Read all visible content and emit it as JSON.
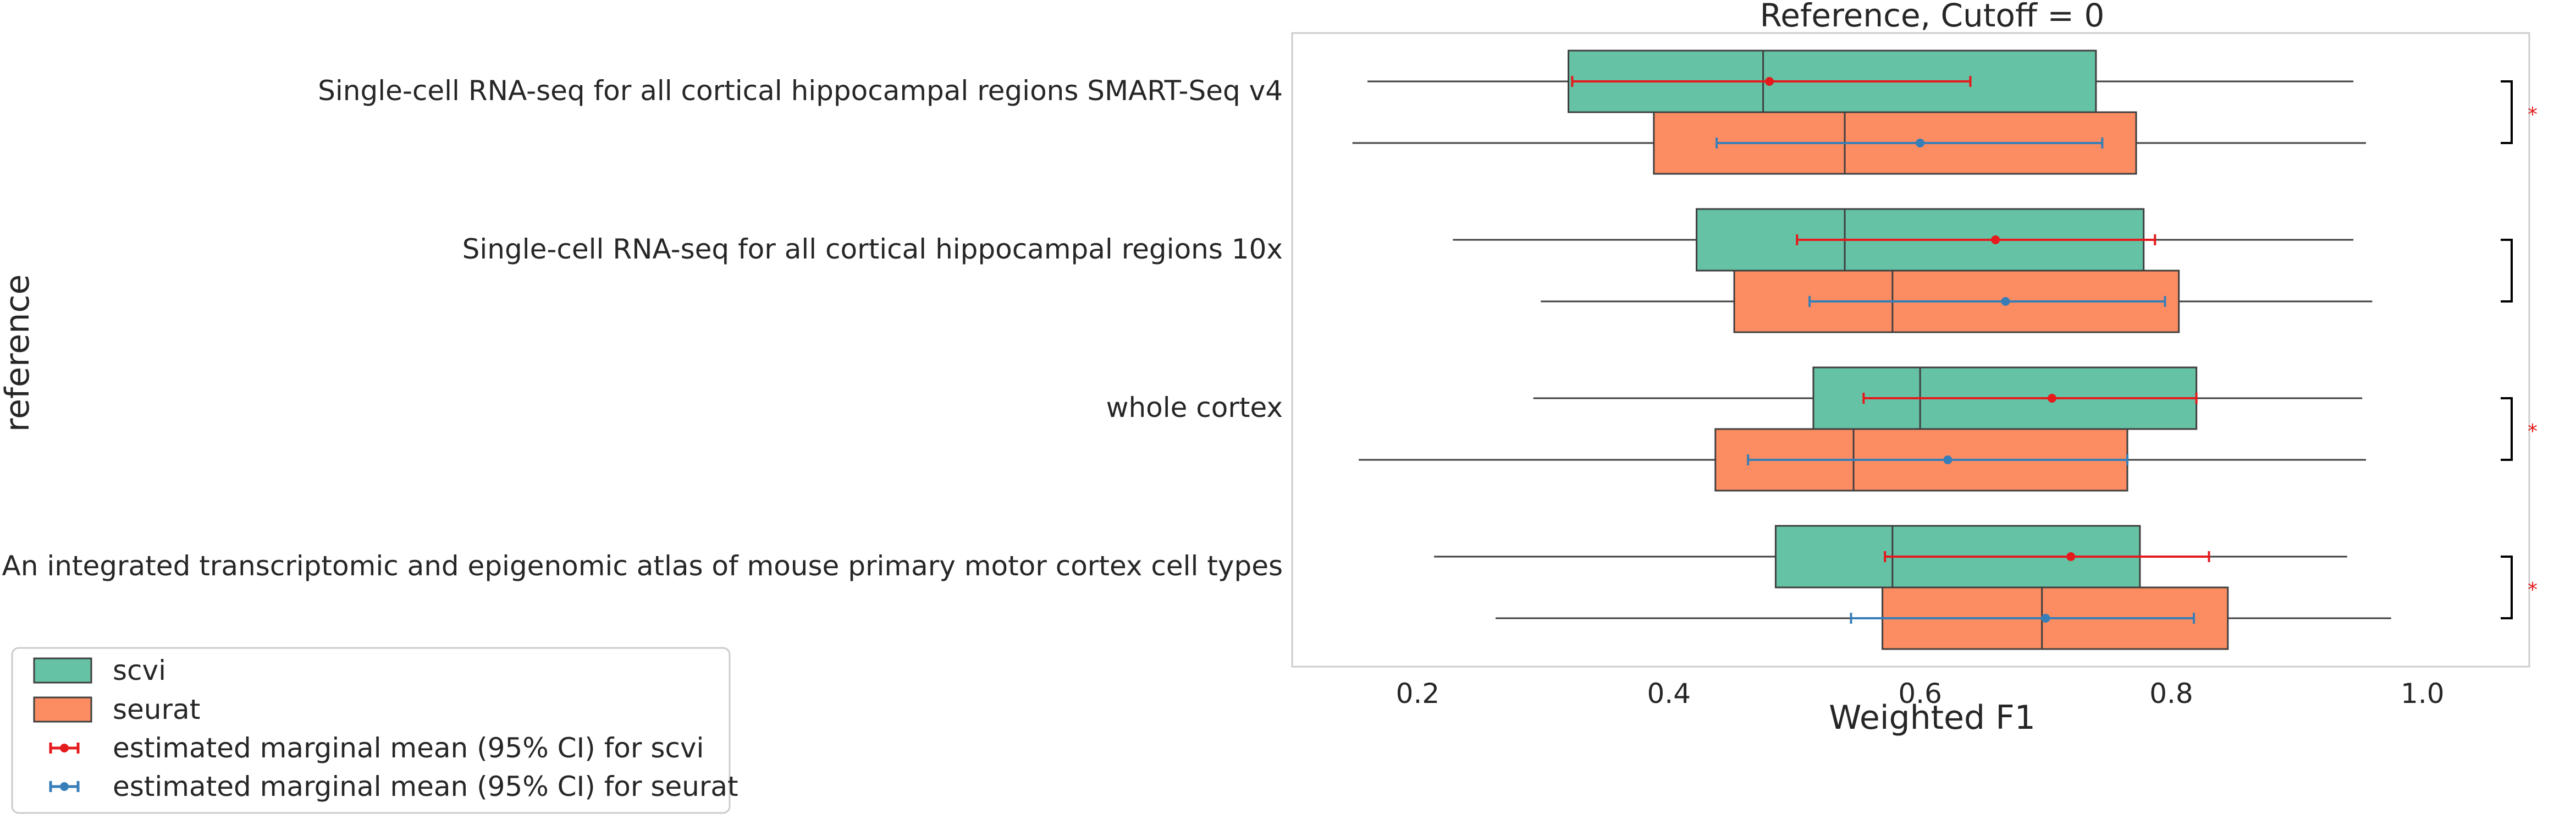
{
  "chart_data": {
    "type": "box",
    "title": "Reference, Cutoff = 0",
    "xlabel": "Weighted F1",
    "ylabel": "reference",
    "xlim": [
      0.1,
      1.085
    ],
    "xticks": [
      "0.2",
      "0.4",
      "0.6",
      "0.8",
      "1.0"
    ],
    "categories": [
      "Single-cell RNA-seq for all cortical  hippocampal regions SMART-Seq v4",
      "Single-cell RNA-seq for all cortical  hippocampal regions 10x",
      "whole cortex",
      "An integrated transcriptomic and epigenomic atlas of mouse primary motor cortex cell types"
    ],
    "series": [
      {
        "name": "scvi",
        "color": "#66c2a5",
        "boxes": [
          {
            "min": 0.16,
            "q1": 0.32,
            "median": 0.475,
            "q3": 0.74,
            "max": 0.945
          },
          {
            "min": 0.228,
            "q1": 0.422,
            "median": 0.54,
            "q3": 0.778,
            "max": 0.945
          },
          {
            "min": 0.292,
            "q1": 0.515,
            "median": 0.6,
            "q3": 0.82,
            "max": 0.952
          },
          {
            "min": 0.213,
            "q1": 0.485,
            "median": 0.578,
            "q3": 0.775,
            "max": 0.94
          }
        ],
        "marginal_mean": [
          {
            "mean": 0.48,
            "ci_low": 0.323,
            "ci_high": 0.64
          },
          {
            "mean": 0.66,
            "ci_low": 0.502,
            "ci_high": 0.787
          },
          {
            "mean": 0.705,
            "ci_low": 0.555,
            "ci_high": 0.82
          },
          {
            "mean": 0.72,
            "ci_low": 0.572,
            "ci_high": 0.83
          }
        ]
      },
      {
        "name": "seurat",
        "color": "#fc8d62",
        "boxes": [
          {
            "min": 0.148,
            "q1": 0.388,
            "median": 0.54,
            "q3": 0.772,
            "max": 0.955
          },
          {
            "min": 0.298,
            "q1": 0.452,
            "median": 0.578,
            "q3": 0.806,
            "max": 0.96
          },
          {
            "min": 0.153,
            "q1": 0.437,
            "median": 0.547,
            "q3": 0.765,
            "max": 0.955
          },
          {
            "min": 0.262,
            "q1": 0.57,
            "median": 0.697,
            "q3": 0.845,
            "max": 0.975
          }
        ],
        "marginal_mean": [
          {
            "mean": 0.6,
            "ci_low": 0.438,
            "ci_high": 0.745
          },
          {
            "mean": 0.668,
            "ci_low": 0.512,
            "ci_high": 0.795
          },
          {
            "mean": 0.622,
            "ci_low": 0.463,
            "ci_high": 0.765
          },
          {
            "mean": 0.7,
            "ci_low": 0.545,
            "ci_high": 0.818
          }
        ]
      }
    ],
    "mean_colors": {
      "scvi": "#e41a1c",
      "seurat": "#377eb8"
    },
    "significance": [
      "*",
      "",
      "*",
      "*"
    ],
    "legend": {
      "placement": "bottom-left",
      "entries": [
        "scvi",
        "seurat",
        "estimated marginal mean (95% CI) for scvi",
        "estimated marginal mean (95% CI) for seurat"
      ]
    },
    "grid": false
  }
}
